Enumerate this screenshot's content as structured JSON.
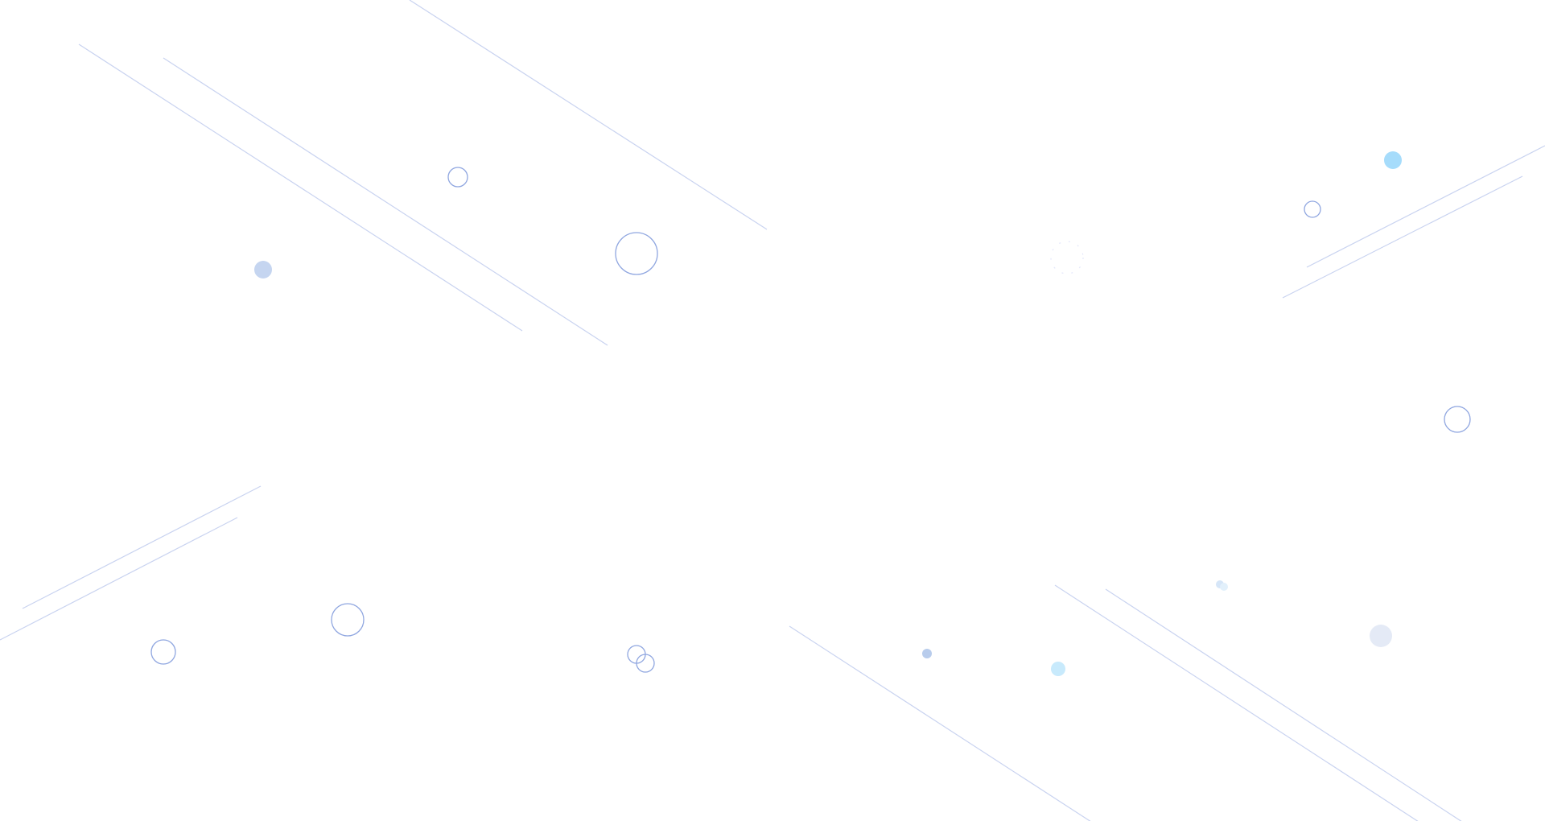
{
  "background": {
    "base_color": "#ffffff",
    "line_color": "#c9d3f0",
    "ring_color": "#8fa6e0",
    "dot_colors": [
      "#c5d5f0",
      "#a6dcfb",
      "#b8ccec",
      "#c8eafc",
      "#e4eaf6",
      "#d6e6f8"
    ]
  }
}
